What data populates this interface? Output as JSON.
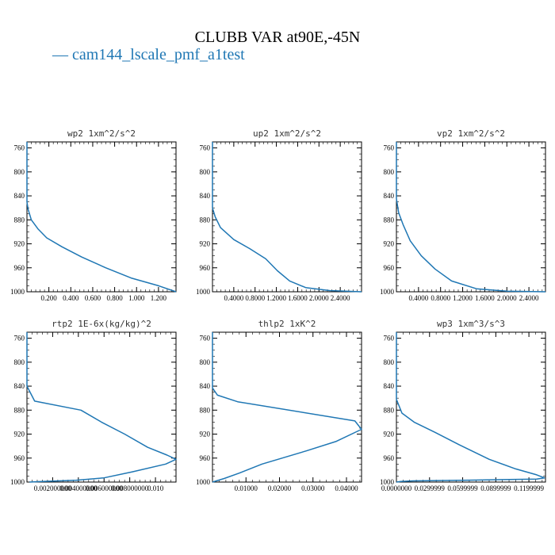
{
  "figure": {
    "title": "CLUBB VAR at90E,-45N",
    "legend_label": "cam144_lscale_pmf_a1test",
    "line_color": "#1f77b4"
  },
  "chart_data": [
    {
      "type": "line",
      "title": "wp2   1xm^2/s^2",
      "ylim": [
        1000,
        750
      ],
      "yticks": [
        760,
        800,
        840,
        880,
        920,
        960,
        1000
      ],
      "xlim": [
        0,
        1.36
      ],
      "xticks": [
        0.2,
        0.4,
        0.6,
        0.8,
        1.0,
        1.2
      ],
      "xticklabels": [
        "0.200",
        "0.400",
        "0.600",
        "0.800",
        "1.000",
        "1.200"
      ],
      "series": [
        {
          "points": [
            [
              0,
              750
            ],
            [
              0,
              850
            ],
            [
              0.01,
              862
            ],
            [
              0.04,
              880
            ],
            [
              0.1,
              895
            ],
            [
              0.18,
              910
            ],
            [
              0.32,
              925
            ],
            [
              0.5,
              942
            ],
            [
              0.72,
              960
            ],
            [
              0.95,
              977
            ],
            [
              1.2,
              990
            ],
            [
              1.36,
              1000
            ]
          ]
        }
      ]
    },
    {
      "type": "line",
      "title": "up2   1xm^2/s^2",
      "ylim": [
        1000,
        750
      ],
      "yticks": [
        760,
        800,
        840,
        880,
        920,
        960,
        1000
      ],
      "xlim": [
        0,
        2.8
      ],
      "xticks": [
        0.4,
        0.8,
        1.2,
        1.6,
        2.0,
        2.4
      ],
      "xticklabels": [
        "0.4000",
        "0.8000",
        "1.2000",
        "1.6000",
        "2.0000",
        "2.4000"
      ],
      "series": [
        {
          "points": [
            [
              0,
              750
            ],
            [
              0,
              860
            ],
            [
              0.05,
              875
            ],
            [
              0.15,
              893
            ],
            [
              0.4,
              913
            ],
            [
              0.7,
              928
            ],
            [
              1.0,
              945
            ],
            [
              1.22,
              965
            ],
            [
              1.45,
              982
            ],
            [
              1.75,
              993
            ],
            [
              2.2,
              998
            ],
            [
              2.8,
              1000
            ]
          ]
        }
      ]
    },
    {
      "type": "line",
      "title": "vp2   1xm^2/s^2",
      "ylim": [
        1000,
        750
      ],
      "yticks": [
        760,
        800,
        840,
        880,
        920,
        960,
        1000
      ],
      "xlim": [
        0,
        2.7
      ],
      "xticks": [
        0.4,
        0.8,
        1.2,
        1.6,
        2.0,
        2.4
      ],
      "xticklabels": [
        "0.4000",
        "0.8000",
        "1.2000",
        "1.6000",
        "2.0000",
        "2.4000"
      ],
      "series": [
        {
          "points": [
            [
              0,
              750
            ],
            [
              0,
              845
            ],
            [
              0.04,
              868
            ],
            [
              0.12,
              888
            ],
            [
              0.25,
              915
            ],
            [
              0.45,
              940
            ],
            [
              0.7,
              962
            ],
            [
              1.0,
              982
            ],
            [
              1.45,
              995
            ],
            [
              2.0,
              999
            ],
            [
              2.7,
              1000
            ]
          ]
        }
      ]
    },
    {
      "type": "line",
      "title": "rtp2   1E-6x(kg/kg)^2",
      "ylim": [
        1000,
        750
      ],
      "yticks": [
        760,
        800,
        840,
        880,
        920,
        960,
        1000
      ],
      "xlim": [
        0,
        0.0116
      ],
      "xticks": [
        0.002,
        0.004,
        0.006,
        0.008,
        0.01
      ],
      "xticklabels": [
        "0.002000000",
        "0.004000000",
        "0.006000000",
        "0.008000000",
        "0.010"
      ],
      "series": [
        {
          "points": [
            [
              0,
              750
            ],
            [
              0,
              840
            ],
            [
              0.0006,
              865
            ],
            [
              0.0042,
              880
            ],
            [
              0.0058,
              900
            ],
            [
              0.0076,
              920
            ],
            [
              0.0094,
              942
            ],
            [
              0.0109,
              955
            ],
            [
              0.0116,
              962
            ],
            [
              0.0108,
              970
            ],
            [
              0.0082,
              983
            ],
            [
              0.006,
              993
            ],
            [
              0.0038,
              997
            ],
            [
              0.0012,
              999
            ],
            [
              0.0002,
              1000
            ]
          ]
        }
      ]
    },
    {
      "type": "line",
      "title": "thlp2   1xK^2",
      "ylim": [
        1000,
        750
      ],
      "yticks": [
        760,
        800,
        840,
        880,
        920,
        960,
        1000
      ],
      "xlim": [
        0,
        0.0445
      ],
      "xticks": [
        0.01,
        0.02,
        0.03,
        0.04
      ],
      "xticklabels": [
        "0.01000",
        "0.02000",
        "0.03000",
        "0.04000"
      ],
      "series": [
        {
          "points": [
            [
              0,
              750
            ],
            [
              0,
              843
            ],
            [
              0.0015,
              855
            ],
            [
              0.0075,
              866
            ],
            [
              0.0425,
              898
            ],
            [
              0.0445,
              912
            ],
            [
              0.037,
              932
            ],
            [
              0.028,
              948
            ],
            [
              0.0148,
              970
            ],
            [
              0.008,
              985
            ],
            [
              0.0035,
              994
            ],
            [
              0,
              1000
            ]
          ]
        }
      ]
    },
    {
      "type": "line",
      "title": "wp3   1xm^3/s^3",
      "ylim": [
        1000,
        750
      ],
      "yticks": [
        760,
        800,
        840,
        880,
        920,
        960,
        1000
      ],
      "xlim": [
        0,
        0.135
      ],
      "xticks": [
        0.0,
        0.03,
        0.06,
        0.09,
        0.12
      ],
      "xticklabels": [
        "0.0000000",
        "0.0299999",
        "0.0599999",
        "0.0899999",
        "0.1199999"
      ],
      "series": [
        {
          "points": [
            [
              0,
              750
            ],
            [
              0,
              862
            ],
            [
              0.005,
              885
            ],
            [
              0.016,
              900
            ],
            [
              0.035,
              917
            ],
            [
              0.057,
              938
            ],
            [
              0.084,
              962
            ],
            [
              0.108,
              978
            ],
            [
              0.127,
              988
            ],
            [
              0.134,
              993
            ],
            [
              0.127,
              995
            ],
            [
              0.06,
              997
            ],
            [
              0.015,
              998
            ],
            [
              0.004,
              999
            ],
            [
              0,
              1000
            ]
          ]
        }
      ]
    }
  ]
}
